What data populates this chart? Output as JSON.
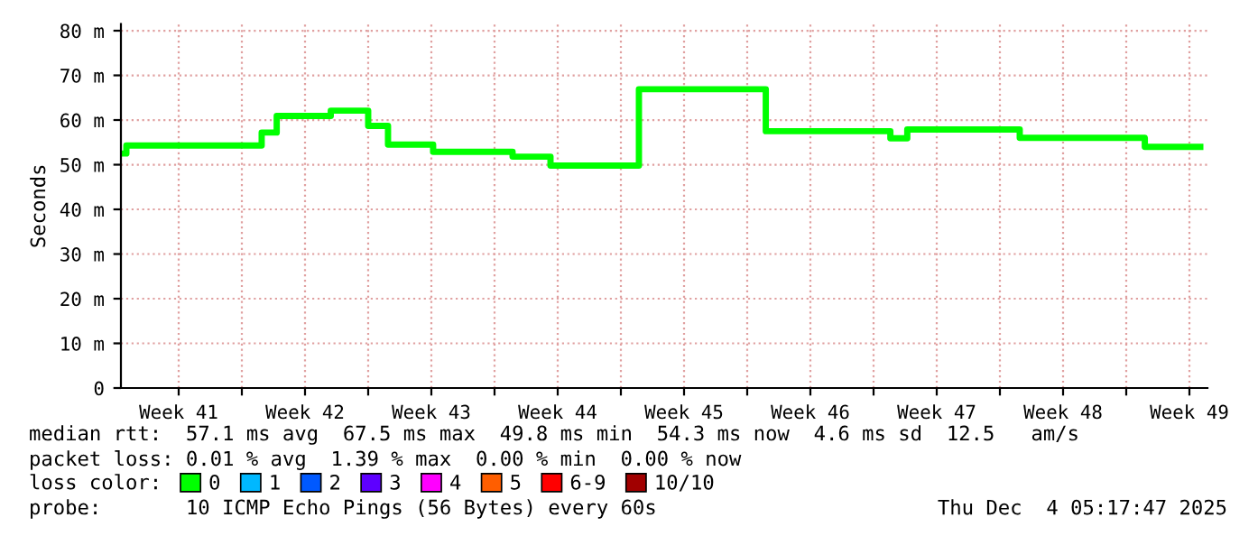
{
  "chart_data": {
    "type": "step",
    "ylabel": "Seconds",
    "x": [
      "2025-10-06T07:13",
      "2025-10-06T14:27",
      "2025-10-14T02:22",
      "2025-10-14T22:22",
      "2025-10-17T22:16",
      "2025-10-20T00:00",
      "2025-10-21T02:22",
      "2025-10-23T14:21",
      "2025-10-28T00:00",
      "2025-10-30T02:25",
      "2025-11-04T00:00",
      "2025-11-11T00:42",
      "2025-11-17T22:21",
      "2025-11-18T20:51",
      "2025-11-25T02:22",
      "2025-12-02T00:42",
      "2025-12-05T02:27"
    ],
    "series": [
      {
        "name": "0",
        "color": "#00ff00",
        "values": [
          52.5,
          54.3,
          57.2,
          60.9,
          62.1,
          58.7,
          54.5,
          52.9,
          51.8,
          49.8,
          66.9,
          57.5,
          55.9,
          57.9,
          56.0,
          54.0,
          54.0
        ]
      },
      {
        "name": "1",
        "color": "#00b8ff",
        "values": [
          null,
          null,
          null,
          null,
          null,
          null,
          null,
          null,
          null,
          null,
          null,
          null,
          null,
          null,
          null,
          null,
          null
        ]
      },
      {
        "name": "2",
        "color": "#0059ff",
        "values": [
          null,
          null,
          null,
          null,
          null,
          null,
          null,
          null,
          null,
          null,
          null,
          null,
          null,
          null,
          null,
          null,
          null
        ]
      },
      {
        "name": "3",
        "color": "#5e00ff",
        "values": [
          null,
          null,
          null,
          null,
          null,
          null,
          null,
          null,
          null,
          null,
          null,
          null,
          null,
          null,
          null,
          null,
          null
        ]
      },
      {
        "name": "4",
        "color": "#ff00ff",
        "values": [
          null,
          null,
          null,
          null,
          null,
          null,
          null,
          null,
          null,
          null,
          null,
          null,
          null,
          null,
          null,
          null,
          null
        ]
      },
      {
        "name": "5",
        "color": "#ff5e00",
        "values": [
          null,
          null,
          null,
          null,
          null,
          null,
          null,
          null,
          null,
          null,
          null,
          null,
          null,
          null,
          null,
          null,
          null
        ]
      },
      {
        "name": "6-9",
        "color": "#ff0000",
        "values": [
          null,
          null,
          null,
          null,
          null,
          null,
          null,
          null,
          null,
          null,
          null,
          null,
          null,
          null,
          null,
          null,
          null
        ]
      },
      {
        "name": "10/10",
        "color": "#a10000",
        "values": [
          null,
          null,
          null,
          null,
          null,
          null,
          null,
          null,
          null,
          null,
          null,
          null,
          null,
          null,
          null,
          null,
          null
        ]
      }
    ],
    "legend_title": "loss color:",
    "legend": "bottom",
    "xlim": [
      "2025-10-06T07:13",
      "2025-12-05T12:00"
    ],
    "xticks": [
      {
        "value": "2025-10-09T12:00",
        "label": "Week 41"
      },
      {
        "value": "2025-10-13",
        "label": null
      },
      {
        "value": "2025-10-16T12:00",
        "label": "Week 42"
      },
      {
        "value": "2025-10-20",
        "label": null
      },
      {
        "value": "2025-10-23T12:00",
        "label": "Week 43"
      },
      {
        "value": "2025-10-27",
        "label": null
      },
      {
        "value": "2025-10-30T12:00",
        "label": "Week 44"
      },
      {
        "value": "2025-11-03",
        "label": null
      },
      {
        "value": "2025-11-06T12:00",
        "label": "Week 45"
      },
      {
        "value": "2025-11-10",
        "label": null
      },
      {
        "value": "2025-11-13T12:00",
        "label": "Week 46"
      },
      {
        "value": "2025-11-17",
        "label": null
      },
      {
        "value": "2025-11-20T12:00",
        "label": "Week 47"
      },
      {
        "value": "2025-11-24",
        "label": null
      },
      {
        "value": "2025-11-27T12:00",
        "label": "Week 48"
      },
      {
        "value": "2025-12-01",
        "label": null
      },
      {
        "value": "2025-12-04T12:00",
        "label": "Week 49"
      }
    ],
    "ylim": [
      0,
      81.5
    ],
    "yticks": [
      0,
      {
        "value": 10,
        "label": "10 m"
      },
      {
        "value": 20,
        "label": "20 m"
      },
      {
        "value": 30,
        "label": "30 m"
      },
      {
        "value": 40,
        "label": "40 m"
      },
      {
        "value": 50,
        "label": "50 m"
      },
      {
        "value": 60,
        "label": "60 m"
      },
      {
        "value": 70,
        "label": "70 m"
      },
      {
        "value": 80,
        "label": "80 m"
      }
    ],
    "grid": true,
    "annotations": [
      "median rtt:  57.1 ms avg  67.5 ms max  49.8 ms min  54.3 ms now  4.6 ms sd  12.5   am/s",
      "packet loss: 0.01 % avg  1.39 % max  0.00 % min  0.00 % now",
      "probe:       10 ICMP Echo Pings (56 Bytes) every 60s",
      "Thu Dec  4 05:17:47 2025"
    ]
  }
}
